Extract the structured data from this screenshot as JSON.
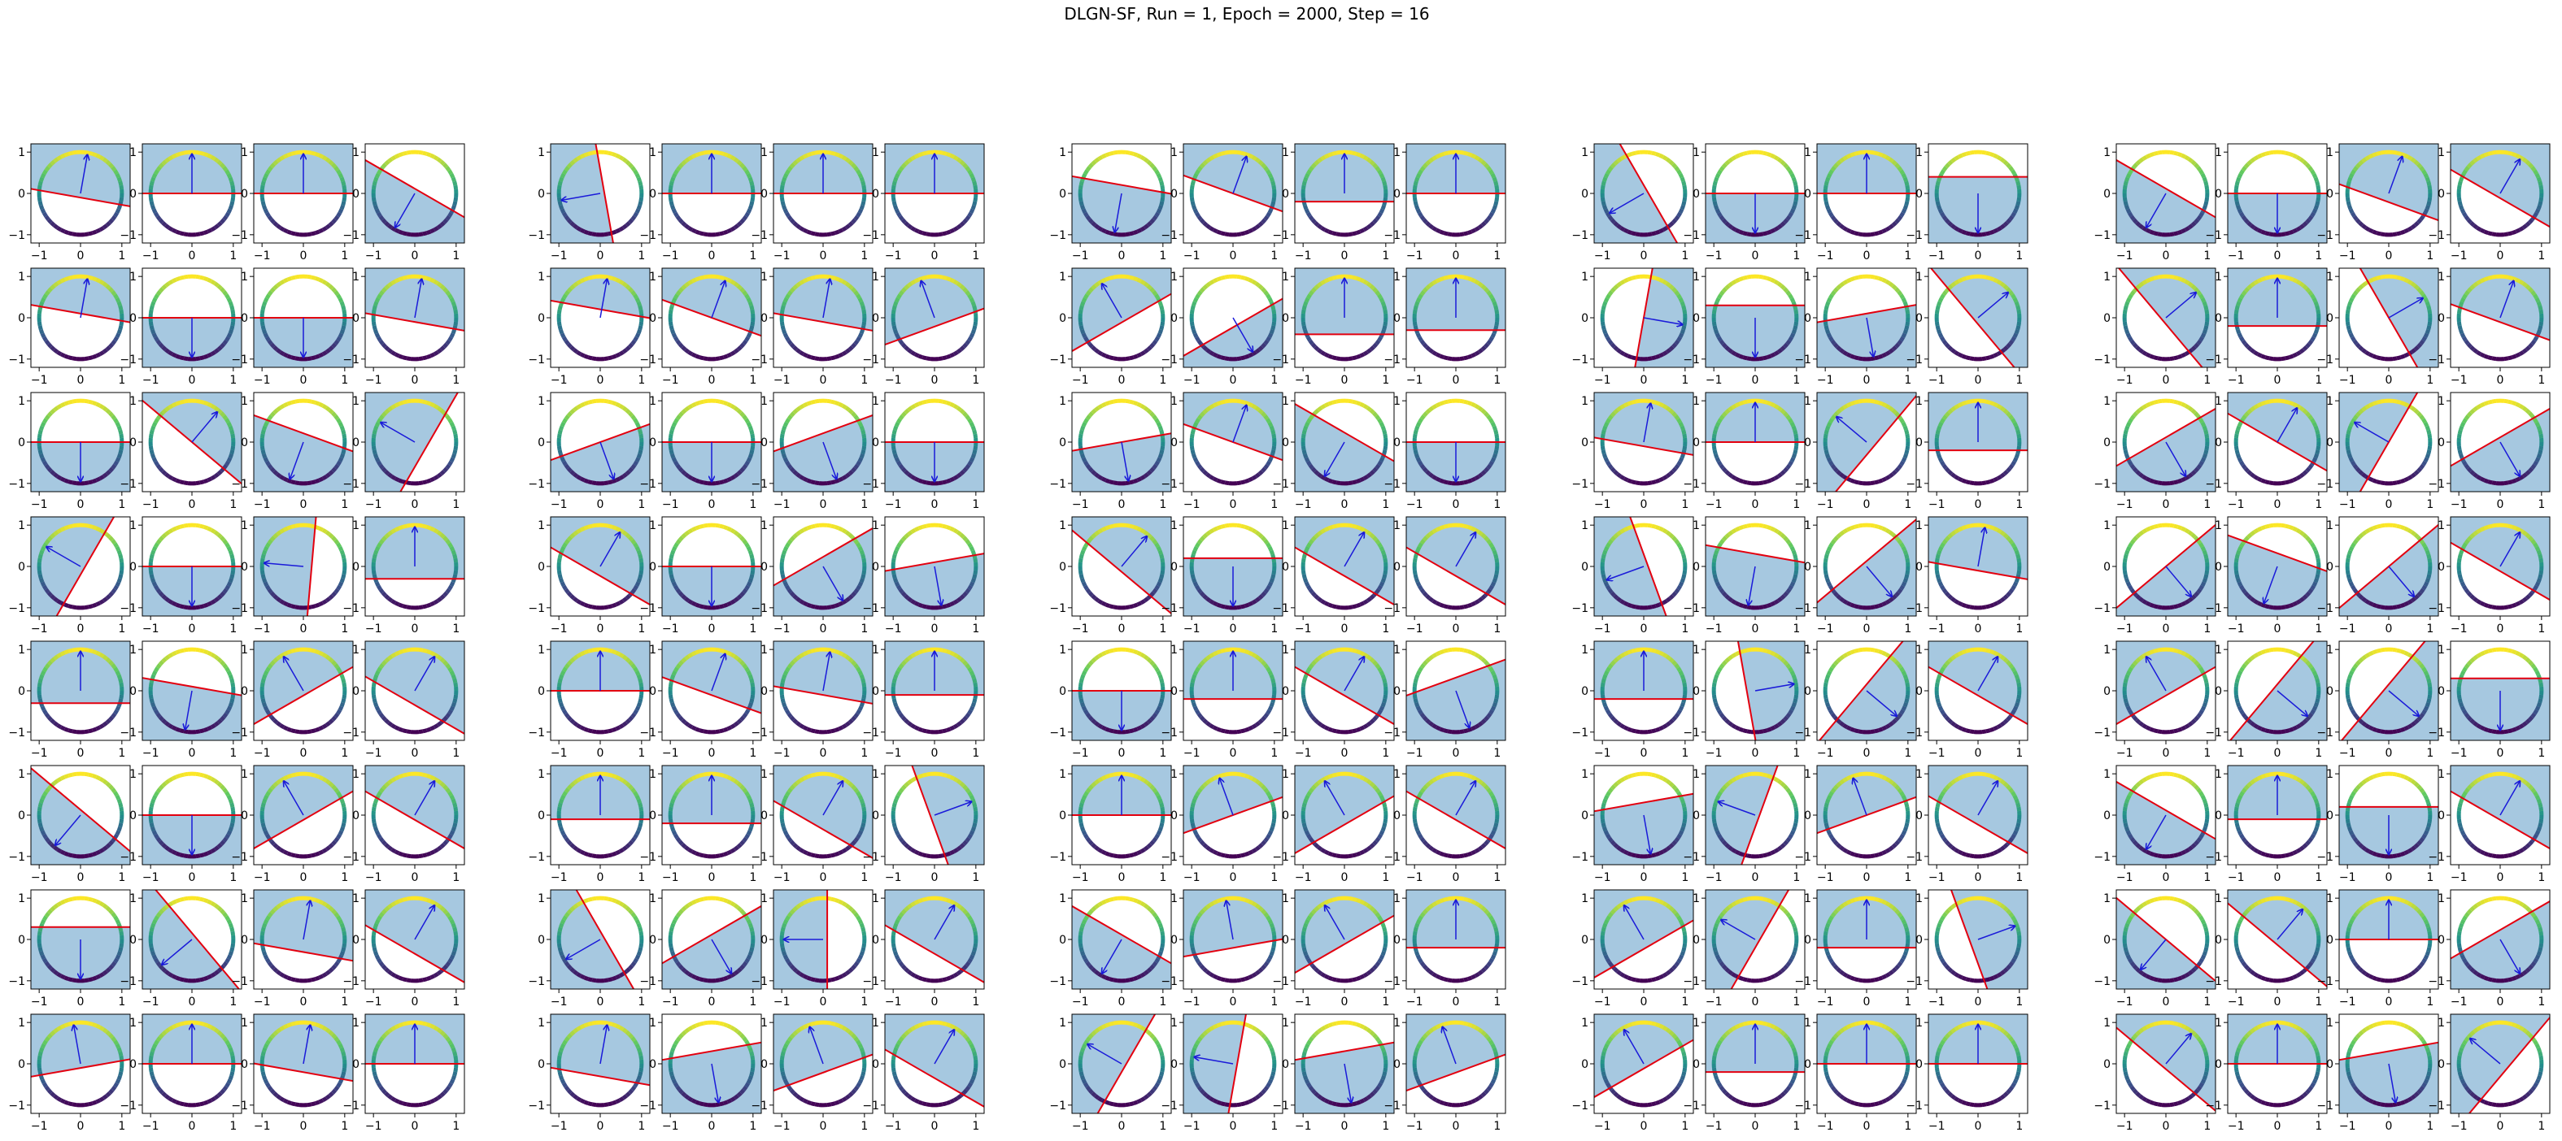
{
  "figure": {
    "title": "DLGN-SF, Run = 1, Epoch = 2000, Step = 16"
  },
  "colors": {
    "fill": "#a6c8e0",
    "boundary": "#e3000f",
    "arrow": "#1a1ad9",
    "axes": "#000000"
  },
  "chart_data": {
    "type": "scatter",
    "description_of_marks": "Each panel: ring of points colored by a viridis colormap on the unit circle, a shaded half-plane, a red decision line through the origin offset and a blue arrow (normal vector).",
    "layout": {
      "groups": 5,
      "rows": 8,
      "cols_per_group": 4
    },
    "axes": {
      "xlim": [
        -1.2,
        1.2
      ],
      "ylim": [
        -1.2,
        1.2
      ],
      "xticks": [
        -1,
        0,
        1
      ],
      "yticks": [
        -1,
        0,
        1
      ],
      "xtick_labels": [
        "−1",
        "0",
        "1"
      ],
      "ytick_labels": [
        "−1",
        "0",
        "1"
      ]
    },
    "colormap": "viridis",
    "ring_radius": 1,
    "panels": [
      [
        [
          80,
          0.1
        ],
        [
          90,
          0
        ],
        [
          90,
          0
        ],
        [
          -120,
          0.1
        ],
        [
          -170,
          0.1
        ],
        [
          90,
          0
        ],
        [
          90,
          0
        ],
        [
          90,
          0
        ],
        [
          -100,
          0.2
        ],
        [
          70,
          0
        ],
        [
          90,
          0.2
        ],
        [
          90,
          0
        ],
        [
          -150,
          0.1
        ],
        [
          -90,
          0
        ],
        [
          90,
          0
        ],
        [
          -90,
          0.4
        ],
        [
          -120,
          0.1
        ],
        [
          -90,
          0
        ],
        [
          70,
          0.2
        ],
        [
          60,
          0.1
        ]
      ],
      [
        [
          80,
          -0.1
        ],
        [
          -90,
          0
        ],
        [
          -90,
          0
        ],
        [
          80,
          0.1
        ],
        [
          80,
          -0.2
        ],
        [
          70,
          0
        ],
        [
          80,
          0.1
        ],
        [
          110,
          0.2
        ],
        [
          120,
          0.1
        ],
        [
          -60,
          -0.2
        ],
        [
          90,
          0.4
        ],
        [
          90,
          0.3
        ],
        [
          -10,
          0
        ],
        [
          -90,
          0.3
        ],
        [
          -80,
          0.1
        ],
        [
          40,
          0.1
        ],
        [
          40,
          0.1
        ],
        [
          90,
          0.2
        ],
        [
          30,
          0
        ],
        [
          70,
          0.1
        ]
      ],
      [
        [
          -90,
          0
        ],
        [
          50,
          0
        ],
        [
          -110,
          0.2
        ],
        [
          150,
          0.3
        ],
        [
          -70,
          0
        ],
        [
          -90,
          0
        ],
        [
          -70,
          0.2
        ],
        [
          -90,
          0
        ],
        [
          -80,
          0
        ],
        [
          70,
          0
        ],
        [
          -120,
          0.2
        ],
        [
          -90,
          0
        ],
        [
          80,
          0.1
        ],
        [
          90,
          0
        ],
        [
          140,
          0.2
        ],
        [
          90,
          0.2
        ],
        [
          -60,
          0.1
        ],
        [
          60,
          0
        ],
        [
          150,
          0
        ],
        [
          -60,
          0.1
        ]
      ],
      [
        [
          150,
          0.1
        ],
        [
          -90,
          0
        ],
        [
          175,
          0.2
        ],
        [
          90,
          0.3
        ],
        [
          60,
          0.2
        ],
        [
          -90,
          0
        ],
        [
          -60,
          0.2
        ],
        [
          -80,
          0.1
        ],
        [
          50,
          0.1
        ],
        [
          -90,
          0.2
        ],
        [
          60,
          0.2
        ],
        [
          60,
          0.2
        ],
        [
          -160,
          0.1
        ],
        [
          -100,
          0.3
        ],
        [
          -50,
          0.1
        ],
        [
          80,
          0.1
        ],
        [
          -50,
          0
        ],
        [
          -110,
          0.3
        ],
        [
          -50,
          0
        ],
        [
          60,
          0.1
        ]
      ],
      [
        [
          90,
          0.3
        ],
        [
          -100,
          0.1
        ],
        [
          120,
          0.1
        ],
        [
          60,
          0.3
        ],
        [
          90,
          0
        ],
        [
          70,
          0.1
        ],
        [
          80,
          0.1
        ],
        [
          90,
          0.1
        ],
        [
          -90,
          0
        ],
        [
          90,
          0.2
        ],
        [
          60,
          0.1
        ],
        [
          -70,
          0.3
        ],
        [
          90,
          0.2
        ],
        [
          10,
          0.2
        ],
        [
          -40,
          0.1
        ],
        [
          60,
          0.1
        ],
        [
          120,
          0.1
        ],
        [
          -40,
          0.1
        ],
        [
          -40,
          0.1
        ],
        [
          -90,
          0.3
        ]
      ],
      [
        [
          -130,
          0.1
        ],
        [
          -90,
          0
        ],
        [
          120,
          0.1
        ],
        [
          60,
          0.1
        ],
        [
          90,
          0.1
        ],
        [
          90,
          0.2
        ],
        [
          60,
          0.3
        ],
        [
          20,
          0.1
        ],
        [
          90,
          0
        ],
        [
          110,
          0
        ],
        [
          120,
          0.2
        ],
        [
          60,
          0.1
        ],
        [
          -80,
          0.3
        ],
        [
          160,
          0.1
        ],
        [
          110,
          0
        ],
        [
          60,
          0.2
        ],
        [
          -120,
          0.1
        ],
        [
          90,
          0.1
        ],
        [
          -90,
          0.2
        ],
        [
          60,
          0.1
        ]
      ],
      [
        [
          -90,
          0.3
        ],
        [
          -140,
          0.1
        ],
        [
          80,
          0.3
        ],
        [
          60,
          0.3
        ],
        [
          -150,
          0.1
        ],
        [
          -60,
          0.1
        ],
        [
          180,
          0.1
        ],
        [
          60,
          0.3
        ],
        [
          -120,
          0.1
        ],
        [
          100,
          0.2
        ],
        [
          120,
          0.1
        ],
        [
          90,
          0.2
        ],
        [
          120,
          0.2
        ],
        [
          150,
          0.1
        ],
        [
          90,
          0.2
        ],
        [
          20,
          0.2
        ],
        [
          -130,
          0
        ],
        [
          50,
          0.1
        ],
        [
          90,
          0
        ],
        [
          -60,
          0.2
        ]
      ],
      [
        [
          100,
          0.1
        ],
        [
          90,
          0
        ],
        [
          80,
          0.2
        ],
        [
          90,
          0
        ],
        [
          80,
          0.3
        ],
        [
          -80,
          0.3
        ],
        [
          110,
          0.2
        ],
        [
          60,
          0.3
        ],
        [
          150,
          0.1
        ],
        [
          170,
          0.1
        ],
        [
          -80,
          0.3
        ],
        [
          110,
          0.2
        ],
        [
          120,
          0.1
        ],
        [
          90,
          0.2
        ],
        [
          90,
          0
        ],
        [
          90,
          0
        ],
        [
          50,
          0.1
        ],
        [
          90,
          0
        ],
        [
          -80,
          0.3
        ],
        [
          140,
          0.2
        ]
      ]
    ]
  }
}
